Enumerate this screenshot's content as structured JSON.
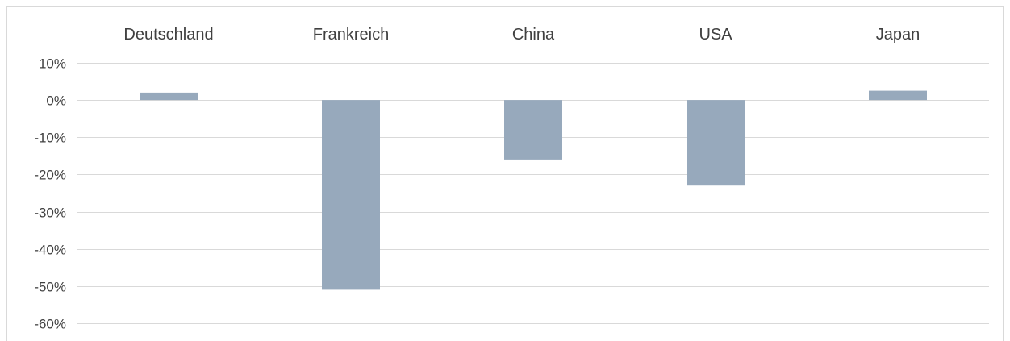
{
  "chart_data": {
    "type": "bar",
    "categories": [
      "Deutschland",
      "Frankreich",
      "China",
      "USA",
      "Japan"
    ],
    "values": [
      2,
      -51,
      -16,
      -23,
      2.5
    ],
    "ylim": [
      -60,
      10
    ],
    "yticks": [
      10,
      0,
      -10,
      -20,
      -30,
      -40,
      -50,
      -60
    ],
    "ytick_labels": [
      "10%",
      "0%",
      "-10%",
      "-20%",
      "-30%",
      "-40%",
      "-50%",
      "-60%"
    ],
    "category_label_position": "top",
    "grid": true,
    "legend": false,
    "bar_color": "#97a9bc",
    "gridline_color": "#d9d9d9",
    "text_color": "#404040"
  }
}
